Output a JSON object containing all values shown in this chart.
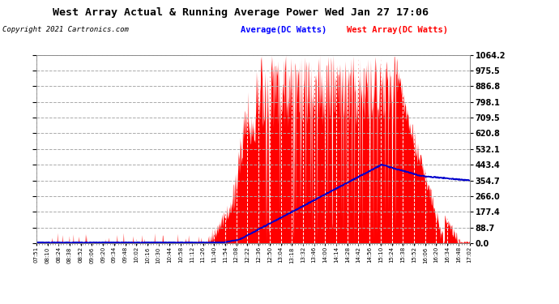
{
  "title": "West Array Actual & Running Average Power Wed Jan 27 17:06",
  "copyright": "Copyright 2021 Cartronics.com",
  "legend_average": "Average(DC Watts)",
  "legend_west": "West Array(DC Watts)",
  "yticks": [
    0.0,
    88.7,
    177.4,
    266.0,
    354.7,
    443.4,
    532.1,
    620.8,
    709.5,
    798.1,
    886.8,
    975.5,
    1064.2
  ],
  "ymax": 1064.2,
  "ymin": 0.0,
  "fig_bg_color": "#ffffff",
  "plot_bg_color": "#ffffff",
  "grid_color_x": "#ffffff",
  "grid_color_y": "#aaaaaa",
  "red_color": "#ff0000",
  "blue_color": "#0000cc",
  "xtick_labels": [
    "07:51",
    "08:10",
    "08:24",
    "08:38",
    "08:52",
    "09:06",
    "09:20",
    "09:34",
    "09:48",
    "10:02",
    "10:16",
    "10:30",
    "10:44",
    "10:58",
    "11:12",
    "11:26",
    "11:40",
    "11:54",
    "12:08",
    "12:22",
    "12:36",
    "12:50",
    "13:04",
    "13:18",
    "13:32",
    "13:46",
    "14:00",
    "14:14",
    "14:28",
    "14:42",
    "14:56",
    "15:10",
    "15:24",
    "15:38",
    "15:52",
    "16:06",
    "16:20",
    "16:34",
    "16:48",
    "17:02"
  ]
}
